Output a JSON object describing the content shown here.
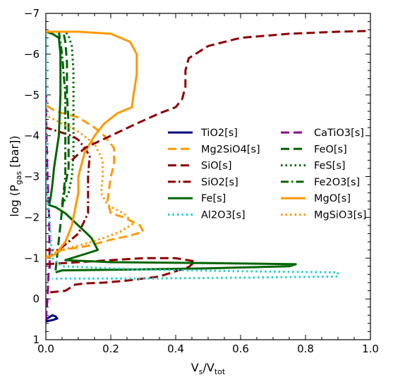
{
  "chart_data": {
    "type": "line",
    "xlabel": "V",
    "xlabel_sub": "s",
    "xlabel_sep": "/V",
    "xlabel_sub2": "tot",
    "ylabel_prefix": "log (P",
    "ylabel_sub": "gas",
    "ylabel_suffix": " [bar])",
    "xlim": [
      0.0,
      1.0
    ],
    "ylim": [
      1,
      -7
    ],
    "y_inverted": true,
    "x_ticks": [
      "0.0",
      "0.2",
      "0.4",
      "0.6",
      "0.8",
      "1.0"
    ],
    "y_ticks": [
      "1",
      "0",
      "−1",
      "−2",
      "−3",
      "−4",
      "−5",
      "−6",
      "−7"
    ],
    "grid": false,
    "legend_placement": "center-right",
    "series": [
      {
        "name": "TiO2[s]",
        "color": "#000080",
        "style": "solid",
        "points": [
          [
            0.0,
            0.5
          ],
          [
            0.01,
            0.45
          ],
          [
            0.02,
            0.4
          ],
          [
            0.03,
            0.43
          ],
          [
            0.035,
            0.48
          ],
          [
            0.02,
            0.52
          ],
          [
            0.0,
            0.55
          ]
        ]
      },
      {
        "name": "CaTiO3[s]",
        "color": "#8b008b",
        "style": "dashed",
        "points": [
          [
            0.0,
            0.5
          ],
          [
            0.005,
            0.0
          ],
          [
            0.008,
            -0.6
          ],
          [
            0.012,
            -0.8
          ],
          [
            0.01,
            -2
          ],
          [
            0.005,
            -3
          ],
          [
            0.002,
            -4
          ],
          [
            0.0,
            -5
          ]
        ]
      },
      {
        "name": "Mg2SiO4[s]",
        "color": "#ff9900",
        "style": "dashed",
        "points": [
          [
            0.0,
            -1.0
          ],
          [
            0.05,
            -1.2
          ],
          [
            0.13,
            -1.3
          ],
          [
            0.2,
            -1.45
          ],
          [
            0.26,
            -1.55
          ],
          [
            0.3,
            -1.65
          ],
          [
            0.29,
            -1.8
          ],
          [
            0.24,
            -2.0
          ],
          [
            0.2,
            -2.1
          ],
          [
            0.19,
            -2.4
          ],
          [
            0.2,
            -3.0
          ],
          [
            0.21,
            -3.3
          ],
          [
            0.21,
            -3.7
          ],
          [
            0.18,
            -4.0
          ],
          [
            0.15,
            -4.2
          ],
          [
            0.1,
            -4.45
          ],
          [
            0.03,
            -4.6
          ],
          [
            0.0,
            -4.75
          ]
        ]
      },
      {
        "name": "FeO[s]",
        "color": "#006400",
        "style": "dashed",
        "points": [
          [
            0.03,
            -0.7
          ],
          [
            0.05,
            -2.2
          ],
          [
            0.06,
            -2.8
          ],
          [
            0.07,
            -3.2
          ],
          [
            0.07,
            -3.8
          ],
          [
            0.07,
            -4.3
          ],
          [
            0.065,
            -5
          ],
          [
            0.065,
            -5.8
          ],
          [
            0.06,
            -6.3
          ],
          [
            0.055,
            -6.5
          ],
          [
            0.04,
            -6.55
          ]
        ]
      },
      {
        "name": "SiO[s]",
        "color": "#8b0000",
        "style": "dashed",
        "points": [
          [
            0.0,
            -0.85
          ],
          [
            0.1,
            -0.9
          ],
          [
            0.2,
            -0.95
          ],
          [
            0.3,
            -1.0
          ],
          [
            0.4,
            -1.0
          ],
          [
            0.46,
            -0.92
          ],
          [
            0.44,
            -0.78
          ],
          [
            0.35,
            -0.55
          ],
          [
            0.25,
            -0.45
          ],
          [
            0.18,
            -0.4
          ],
          [
            0.12,
            -0.38
          ],
          [
            0.09,
            -0.35
          ],
          [
            0.06,
            -0.2
          ],
          [
            0.0,
            -0.15
          ]
        ]
      },
      {
        "name": "FeS[s]",
        "color": "#006400",
        "style": "dotted",
        "points": [
          [
            0.05,
            -2.3
          ],
          [
            0.07,
            -2.6
          ],
          [
            0.08,
            -3.0
          ],
          [
            0.085,
            -3.5
          ],
          [
            0.085,
            -4.2
          ],
          [
            0.085,
            -5.0
          ],
          [
            0.085,
            -5.6
          ],
          [
            0.08,
            -6.2
          ],
          [
            0.07,
            -6.45
          ],
          [
            0.06,
            -6.55
          ]
        ]
      },
      {
        "name": "SiO2[s]",
        "color": "#8b0000",
        "style": "dashdot",
        "points": [
          [
            0.0,
            -1.2
          ],
          [
            0.04,
            -1.2
          ],
          [
            0.1,
            -1.6
          ],
          [
            0.13,
            -2.1
          ],
          [
            0.13,
            -3.0
          ],
          [
            0.135,
            -3.5
          ],
          [
            0.12,
            -3.7
          ],
          [
            0.1,
            -3.9
          ],
          [
            0.08,
            -4.0
          ],
          [
            0.0,
            -4.2
          ]
        ]
      },
      {
        "name": "Fe2O3[s]",
        "color": "#006400",
        "style": "dashdot",
        "points": [
          [
            0.05,
            -2.3
          ],
          [
            0.06,
            -3.0
          ],
          [
            0.06,
            -4.0
          ],
          [
            0.06,
            -5.0
          ],
          [
            0.05,
            -6.0
          ],
          [
            0.04,
            -6.55
          ]
        ]
      },
      {
        "name": "Fe[s]",
        "color": "#006400",
        "style": "solid",
        "points": [
          [
            0.0,
            -6.55
          ],
          [
            0.02,
            -6.5
          ],
          [
            0.04,
            -6.4
          ],
          [
            0.045,
            -6.0
          ],
          [
            0.045,
            -5.0
          ],
          [
            0.04,
            -4.0
          ],
          [
            0.025,
            -3.2
          ],
          [
            0.02,
            -2.8
          ],
          [
            0.015,
            -2.5
          ],
          [
            0.01,
            -2.3
          ],
          [
            0.03,
            -2.25
          ],
          [
            0.06,
            -2.1
          ],
          [
            0.1,
            -1.8
          ],
          [
            0.14,
            -1.5
          ],
          [
            0.16,
            -1.2
          ],
          [
            0.12,
            -1.1
          ],
          [
            0.06,
            -0.95
          ],
          [
            0.2,
            -0.9
          ],
          [
            0.5,
            -0.88
          ],
          [
            0.77,
            -0.85
          ],
          [
            0.75,
            -0.8
          ],
          [
            0.5,
            -0.75
          ],
          [
            0.25,
            -0.72
          ],
          [
            0.05,
            -0.7
          ],
          [
            0.03,
            -0.65
          ]
        ]
      },
      {
        "name": "MgO[s]",
        "color": "#ff9900",
        "style": "solid",
        "points": [
          [
            0.0,
            -6.55
          ],
          [
            0.1,
            -6.55
          ],
          [
            0.2,
            -6.5
          ],
          [
            0.26,
            -6.3
          ],
          [
            0.28,
            -6.0
          ],
          [
            0.28,
            -5.5
          ],
          [
            0.27,
            -5.0
          ],
          [
            0.265,
            -4.7
          ],
          [
            0.22,
            -4.55
          ],
          [
            0.18,
            -4.3
          ],
          [
            0.15,
            -4.0
          ],
          [
            0.12,
            -3.6
          ],
          [
            0.1,
            -3.0
          ],
          [
            0.1,
            -2.6
          ],
          [
            0.09,
            -2.2
          ],
          [
            0.08,
            -1.8
          ],
          [
            0.06,
            -1.4
          ],
          [
            0.03,
            -1.1
          ],
          [
            0.0,
            -1.0
          ]
        ]
      },
      {
        "name": "Al2O3[s]",
        "color": "#22cccc",
        "style": "dotted",
        "points": [
          [
            0.0,
            -6.5
          ],
          [
            0.0,
            -3.0
          ],
          [
            0.01,
            -2.0
          ],
          [
            0.015,
            -1.5
          ],
          [
            0.02,
            -1.0
          ],
          [
            0.05,
            -0.8
          ],
          [
            0.3,
            -0.72
          ],
          [
            0.6,
            -0.68
          ],
          [
            0.9,
            -0.65
          ],
          [
            0.9,
            -0.55
          ],
          [
            0.6,
            -0.52
          ],
          [
            0.3,
            -0.5
          ],
          [
            0.05,
            -0.5
          ],
          [
            0.02,
            -0.5
          ]
        ]
      },
      {
        "name": "MgSiO3[s]",
        "color": "#ff9900",
        "style": "dotted",
        "points": [
          [
            0.0,
            -1.05
          ],
          [
            0.05,
            -1.2
          ],
          [
            0.12,
            -1.35
          ],
          [
            0.18,
            -1.5
          ],
          [
            0.23,
            -1.65
          ],
          [
            0.27,
            -1.85
          ],
          [
            0.24,
            -2.1
          ],
          [
            0.19,
            -2.3
          ],
          [
            0.17,
            -2.6
          ],
          [
            0.175,
            -3.0
          ],
          [
            0.175,
            -3.4
          ],
          [
            0.15,
            -3.8
          ],
          [
            0.1,
            -4.1
          ],
          [
            0.05,
            -4.3
          ],
          [
            0.0,
            -4.5
          ]
        ]
      },
      {
        "name": "",
        "color": "#8b0000",
        "style": "dashed",
        "points": [
          [
            0.08,
            -3.4
          ],
          [
            0.12,
            -3.7
          ],
          [
            0.2,
            -4.0
          ],
          [
            0.28,
            -4.3
          ],
          [
            0.35,
            -4.55
          ],
          [
            0.4,
            -4.7
          ],
          [
            0.42,
            -4.9
          ],
          [
            0.43,
            -5.2
          ],
          [
            0.43,
            -5.6
          ],
          [
            0.44,
            -5.9
          ],
          [
            0.5,
            -6.2
          ],
          [
            0.6,
            -6.4
          ],
          [
            0.75,
            -6.5
          ],
          [
            0.9,
            -6.55
          ],
          [
            1.0,
            -6.57
          ]
        ]
      }
    ],
    "legend": [
      [
        "TiO2[s]",
        "CaTiO3[s]"
      ],
      [
        "Mg2SiO4[s]",
        "FeO[s]"
      ],
      [
        "SiO[s]",
        "FeS[s]"
      ],
      [
        "SiO2[s]",
        "Fe2O3[s]"
      ],
      [
        "Fe[s]",
        "MgO[s]"
      ],
      [
        "Al2O3[s]",
        "MgSiO3[s]"
      ]
    ]
  }
}
